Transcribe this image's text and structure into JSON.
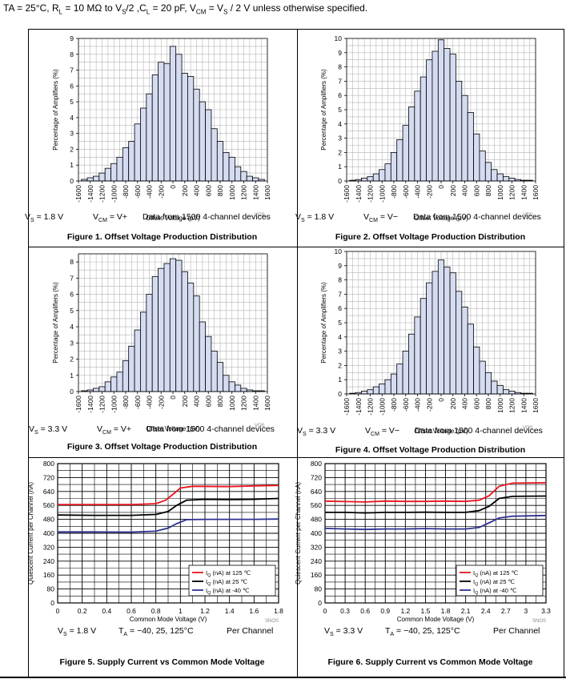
{
  "header": {
    "prefix": "TA = 25°C, R",
    "rl_sub": "L",
    "rl_rest": " = 10 MΩ to V",
    "vs_sub": "S",
    "mid": "/2 ,C",
    "cl_sub": "L",
    "cl_rest": " = 20 pF, V",
    "vcm_sub": "CM",
    "rest": " = V",
    "vs2_sub": "S",
    "tail": " / 2 V unless otherwise specified."
  },
  "figures": [
    {
      "caption": "Figure 1. Offset Voltage Production Distribution",
      "vs": "= 1.8 V",
      "vcm": "= V+",
      "note": "Data from 1500 4-channel devices",
      "tag": "VOS_"
    },
    {
      "caption": "Figure 2. Offset Voltage Production Distribution",
      "vs": "= 1.8 V",
      "vcm": "= V−",
      "note": "Data from 1500 4-channel devices",
      "tag": "VOS_"
    },
    {
      "caption": "Figure 3. Offset Voltage Production Distribution",
      "vs": "= 3.3 V",
      "vcm": "= V+",
      "note": "Data from 1500 4-channel devices",
      "tag": "VOS_"
    },
    {
      "caption": "Figure 4. Offset Voltage Production Distribution",
      "vs": "= 3.3 V",
      "vcm": "= V−",
      "note": "Data from 1500 4-channel devices",
      "tag": "VOS_"
    },
    {
      "caption": "Figure 5. Supply Current vs Common Mode Voltage",
      "vs": "= 1.8 V",
      "ta": "= −40, 25, 125°C",
      "per": "Per Channel",
      "tag": "SNOS"
    },
    {
      "caption": "Figure 6. Supply Current vs Common Mode Voltage",
      "vs": "= 3.3 V",
      "ta": "= −40, 25, 125°C",
      "per": "Per Channel",
      "tag": "SNOS"
    }
  ],
  "labels": {
    "vs": "V",
    "vs_sub": "S",
    "vcm": "V",
    "vcm_sub": "CM",
    "ta": "T",
    "ta_sub": "A"
  },
  "chart_data": [
    {
      "type": "bar",
      "title": "Figure 1. Offset Voltage Production Distribution",
      "xlabel": "Offset Voltage (µV)",
      "ylabel": "Percentage of Amplifiers (%)",
      "ylim": [
        0,
        9
      ],
      "yticks": [
        "0",
        "1",
        "2",
        "3",
        "4",
        "5",
        "6",
        "7",
        "8",
        "9"
      ],
      "xticks": [
        "-1600",
        "-1400",
        "-1200",
        "-1000",
        "-800",
        "-600",
        "-400",
        "-200",
        "0",
        "200",
        "400",
        "600",
        "800",
        "1000",
        "1200",
        "1400",
        "1600"
      ],
      "xlim": [
        -1600,
        1600
      ],
      "bin_width": 100,
      "x": [
        -1500,
        -1400,
        -1300,
        -1200,
        -1100,
        -1000,
        -900,
        -800,
        -700,
        -600,
        -500,
        -400,
        -300,
        -200,
        -100,
        0,
        100,
        200,
        300,
        400,
        500,
        600,
        700,
        800,
        900,
        1000,
        1100,
        1200,
        1300,
        1400,
        1500
      ],
      "values": [
        0.1,
        0.2,
        0.3,
        0.5,
        0.8,
        1.1,
        1.5,
        2.1,
        2.5,
        3.6,
        4.6,
        5.5,
        6.7,
        7.5,
        7.4,
        8.5,
        8.0,
        6.8,
        6.6,
        5.8,
        5.0,
        4.5,
        3.3,
        2.5,
        1.8,
        1.5,
        0.9,
        0.6,
        0.3,
        0.2,
        0.1
      ]
    },
    {
      "type": "bar",
      "title": "Figure 2. Offset Voltage Production Distribution",
      "xlabel": "Offset Voltage (µV)",
      "ylabel": "Percentage of Amplifiers (%)",
      "ylim": [
        0,
        10
      ],
      "yticks": [
        "0",
        "1",
        "2",
        "3",
        "4",
        "5",
        "6",
        "7",
        "8",
        "9",
        "10"
      ],
      "xticks": [
        "-1600",
        "-1400",
        "-1200",
        "-1000",
        "-800",
        "-600",
        "-400",
        "-200",
        "0",
        "200",
        "400",
        "600",
        "800",
        "1000",
        "1200",
        "1400",
        "1600"
      ],
      "xlim": [
        -1600,
        1600
      ],
      "bin_width": 100,
      "x": [
        -1500,
        -1400,
        -1300,
        -1200,
        -1100,
        -1000,
        -900,
        -800,
        -700,
        -600,
        -500,
        -400,
        -300,
        -200,
        -100,
        0,
        100,
        200,
        300,
        400,
        500,
        600,
        700,
        800,
        900,
        1000,
        1100,
        1200,
        1300,
        1400,
        1500
      ],
      "values": [
        0.05,
        0.1,
        0.2,
        0.3,
        0.5,
        0.8,
        1.2,
        2.0,
        2.9,
        3.9,
        5.2,
        6.3,
        7.3,
        8.5,
        9.1,
        9.9,
        9.3,
        8.9,
        7.0,
        6.0,
        4.8,
        3.3,
        2.1,
        1.3,
        0.8,
        0.5,
        0.3,
        0.2,
        0.1,
        0.05,
        0.05
      ]
    },
    {
      "type": "bar",
      "title": "Figure 3. Offset Voltage Production Distribution",
      "xlabel": "Offset Voltage (µV)",
      "ylabel": "Percentage of Amplifiers (%)",
      "ylim": [
        0,
        8.5
      ],
      "yticks": [
        "0",
        "1",
        "2",
        "3",
        "4",
        "5",
        "6",
        "7",
        "8"
      ],
      "xticks": [
        "-1600",
        "-1400",
        "-1200",
        "-1000",
        "-800",
        "-600",
        "-400",
        "-200",
        "0",
        "200",
        "400",
        "600",
        "800",
        "1000",
        "1200",
        "1400",
        "1600"
      ],
      "xlim": [
        -1600,
        1600
      ],
      "bin_width": 100,
      "x": [
        -1500,
        -1400,
        -1300,
        -1200,
        -1100,
        -1000,
        -900,
        -800,
        -700,
        -600,
        -500,
        -400,
        -300,
        -200,
        -100,
        0,
        100,
        200,
        300,
        400,
        500,
        600,
        700,
        800,
        900,
        1000,
        1100,
        1200,
        1300,
        1400,
        1500
      ],
      "values": [
        0.05,
        0.1,
        0.2,
        0.3,
        0.6,
        0.9,
        1.2,
        1.9,
        2.8,
        3.8,
        4.9,
        6.0,
        7.1,
        7.6,
        7.9,
        8.2,
        8.1,
        7.4,
        6.7,
        5.9,
        4.3,
        3.4,
        2.5,
        1.8,
        1.0,
        0.6,
        0.4,
        0.2,
        0.1,
        0.05,
        0.05
      ]
    },
    {
      "type": "bar",
      "title": "Figure 4. Offset Voltage Production Distribution",
      "xlabel": "Offset Voltage (µV)",
      "ylabel": "Percentage of Amplifiers (%)",
      "ylim": [
        0,
        10
      ],
      "yticks": [
        "0",
        "1",
        "2",
        "3",
        "4",
        "5",
        "6",
        "7",
        "8",
        "9",
        "10"
      ],
      "xticks": [
        "-1600",
        "-1400",
        "-1200",
        "-1000",
        "-800",
        "-600",
        "-400",
        "-200",
        "0",
        "200",
        "400",
        "600",
        "800",
        "1000",
        "1200",
        "1400",
        "1600"
      ],
      "xlim": [
        -1600,
        1600
      ],
      "bin_width": 100,
      "x": [
        -1500,
        -1400,
        -1300,
        -1200,
        -1100,
        -1000,
        -900,
        -800,
        -700,
        -600,
        -500,
        -400,
        -300,
        -200,
        -100,
        0,
        100,
        200,
        300,
        400,
        500,
        600,
        700,
        800,
        900,
        1000,
        1100,
        1200,
        1300,
        1400,
        1500
      ],
      "values": [
        0.05,
        0.1,
        0.2,
        0.3,
        0.5,
        0.7,
        1.0,
        1.4,
        2.1,
        3.0,
        4.2,
        5.4,
        6.7,
        7.8,
        8.6,
        9.4,
        8.9,
        8.5,
        7.2,
        6.1,
        4.9,
        3.3,
        2.3,
        1.5,
        0.9,
        0.6,
        0.3,
        0.2,
        0.1,
        0.05,
        0.05
      ]
    },
    {
      "type": "line",
      "title": "Figure 5. Supply Current vs Common Mode Voltage",
      "xlabel": "Common Mode Voltage (V)",
      "ylabel": "Quiescent Current per Channel (nA)",
      "xlim": [
        0,
        1.8
      ],
      "ylim": [
        0,
        800
      ],
      "xticks": [
        "0",
        "0.2",
        "0.4",
        "0.6",
        "0.8",
        "1",
        "1.2",
        "1.4",
        "1.6",
        "1.8"
      ],
      "yticks": [
        "0",
        "80",
        "160",
        "240",
        "320",
        "400",
        "480",
        "560",
        "640",
        "720",
        "800"
      ],
      "series": [
        {
          "name": "I",
          "sub": "Q",
          "suffix": " (nA) at 125 ℃",
          "color": "#e8141e",
          "x": [
            0,
            0.3,
            0.6,
            0.8,
            0.88,
            0.95,
            1.0,
            1.1,
            1.4,
            1.6,
            1.8
          ],
          "y": [
            565,
            565,
            565,
            570,
            590,
            630,
            660,
            670,
            668,
            672,
            675
          ]
        },
        {
          "name": "I",
          "sub": "Q",
          "suffix": " (nA) at 25 ℃",
          "color": "#000000",
          "x": [
            0,
            0.3,
            0.6,
            0.8,
            0.9,
            0.97,
            1.05,
            1.2,
            1.4,
            1.6,
            1.8
          ],
          "y": [
            505,
            503,
            503,
            508,
            525,
            560,
            590,
            595,
            593,
            595,
            600
          ]
        },
        {
          "name": "I",
          "sub": "Q",
          "suffix": " (nA) at -40 ℃",
          "color": "#2e3192",
          "x": [
            0,
            0.3,
            0.6,
            0.8,
            0.9,
            0.97,
            1.05,
            1.2,
            1.4,
            1.6,
            1.8
          ],
          "y": [
            408,
            408,
            407,
            412,
            430,
            455,
            478,
            480,
            480,
            480,
            482
          ]
        }
      ]
    },
    {
      "type": "line",
      "title": "Figure 6. Supply Current vs Common Mode Voltage",
      "xlabel": "Common Mode Voltage (V)",
      "ylabel": "Quiescent Current per Channel (nA)",
      "xlim": [
        0,
        3.3
      ],
      "ylim": [
        0,
        800
      ],
      "xticks": [
        "0",
        "0.3",
        "0.6",
        "0.9",
        "1.2",
        "1.5",
        "1.8",
        "2.1",
        "2.4",
        "2.7",
        "3",
        "3.3"
      ],
      "yticks": [
        "0",
        "80",
        "160",
        "240",
        "320",
        "400",
        "480",
        "560",
        "640",
        "720",
        "800"
      ],
      "series": [
        {
          "name": "I",
          "sub": "Q",
          "suffix": " (nA) at 125 ℃",
          "color": "#e8141e",
          "x": [
            0,
            0.3,
            0.6,
            0.9,
            1.2,
            1.5,
            1.8,
            2.1,
            2.3,
            2.45,
            2.6,
            2.8,
            3.3
          ],
          "y": [
            585,
            582,
            580,
            585,
            583,
            583,
            585,
            583,
            590,
            615,
            670,
            688,
            690
          ]
        },
        {
          "name": "I",
          "sub": "Q",
          "suffix": " (nA) at 25 ℃",
          "color": "#000000",
          "x": [
            0,
            0.3,
            0.6,
            0.9,
            1.2,
            1.5,
            1.8,
            2.1,
            2.3,
            2.45,
            2.6,
            2.8,
            3.3
          ],
          "y": [
            520,
            520,
            517,
            520,
            520,
            521,
            520,
            520,
            530,
            555,
            600,
            612,
            614
          ]
        },
        {
          "name": "I",
          "sub": "Q",
          "suffix": " (nA) at -40 ℃",
          "color": "#2e3192",
          "x": [
            0,
            0.3,
            0.6,
            0.9,
            1.2,
            1.5,
            1.8,
            2.1,
            2.3,
            2.45,
            2.6,
            2.8,
            3.3
          ],
          "y": [
            428,
            425,
            422,
            425,
            425,
            427,
            425,
            425,
            433,
            460,
            488,
            498,
            502
          ]
        }
      ]
    }
  ]
}
